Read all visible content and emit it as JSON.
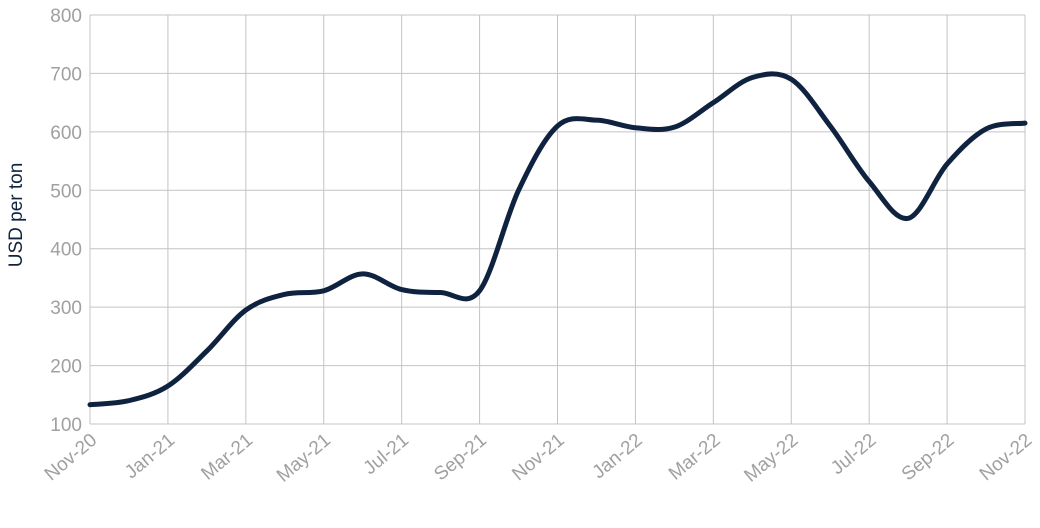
{
  "chart_data": {
    "type": "line",
    "y_label": "USD per ton",
    "categories": [
      "Nov-20",
      null,
      "Jan-21",
      null,
      "Mar-21",
      null,
      "May-21",
      null,
      "Jul-21",
      null,
      "Sep-21",
      null,
      "Nov-21",
      null,
      "Jan-22",
      null,
      "Mar-22",
      null,
      "May-22",
      null,
      "Jul-22",
      null,
      "Sep-22",
      null,
      "Nov-22"
    ],
    "series": [
      {
        "color": "#0f2340",
        "values": [
          133,
          140,
          165,
          225,
          295,
          322,
          328,
          357,
          330,
          325,
          328,
          500,
          610,
          620,
          607,
          608,
          650,
          693,
          690,
          610,
          515,
          452,
          545,
          605,
          615
        ]
      }
    ],
    "ylim": [
      100,
      800
    ],
    "yticks": [
      100,
      200,
      300,
      400,
      500,
      600,
      700,
      800
    ],
    "grid": true,
    "smooth": true
  }
}
